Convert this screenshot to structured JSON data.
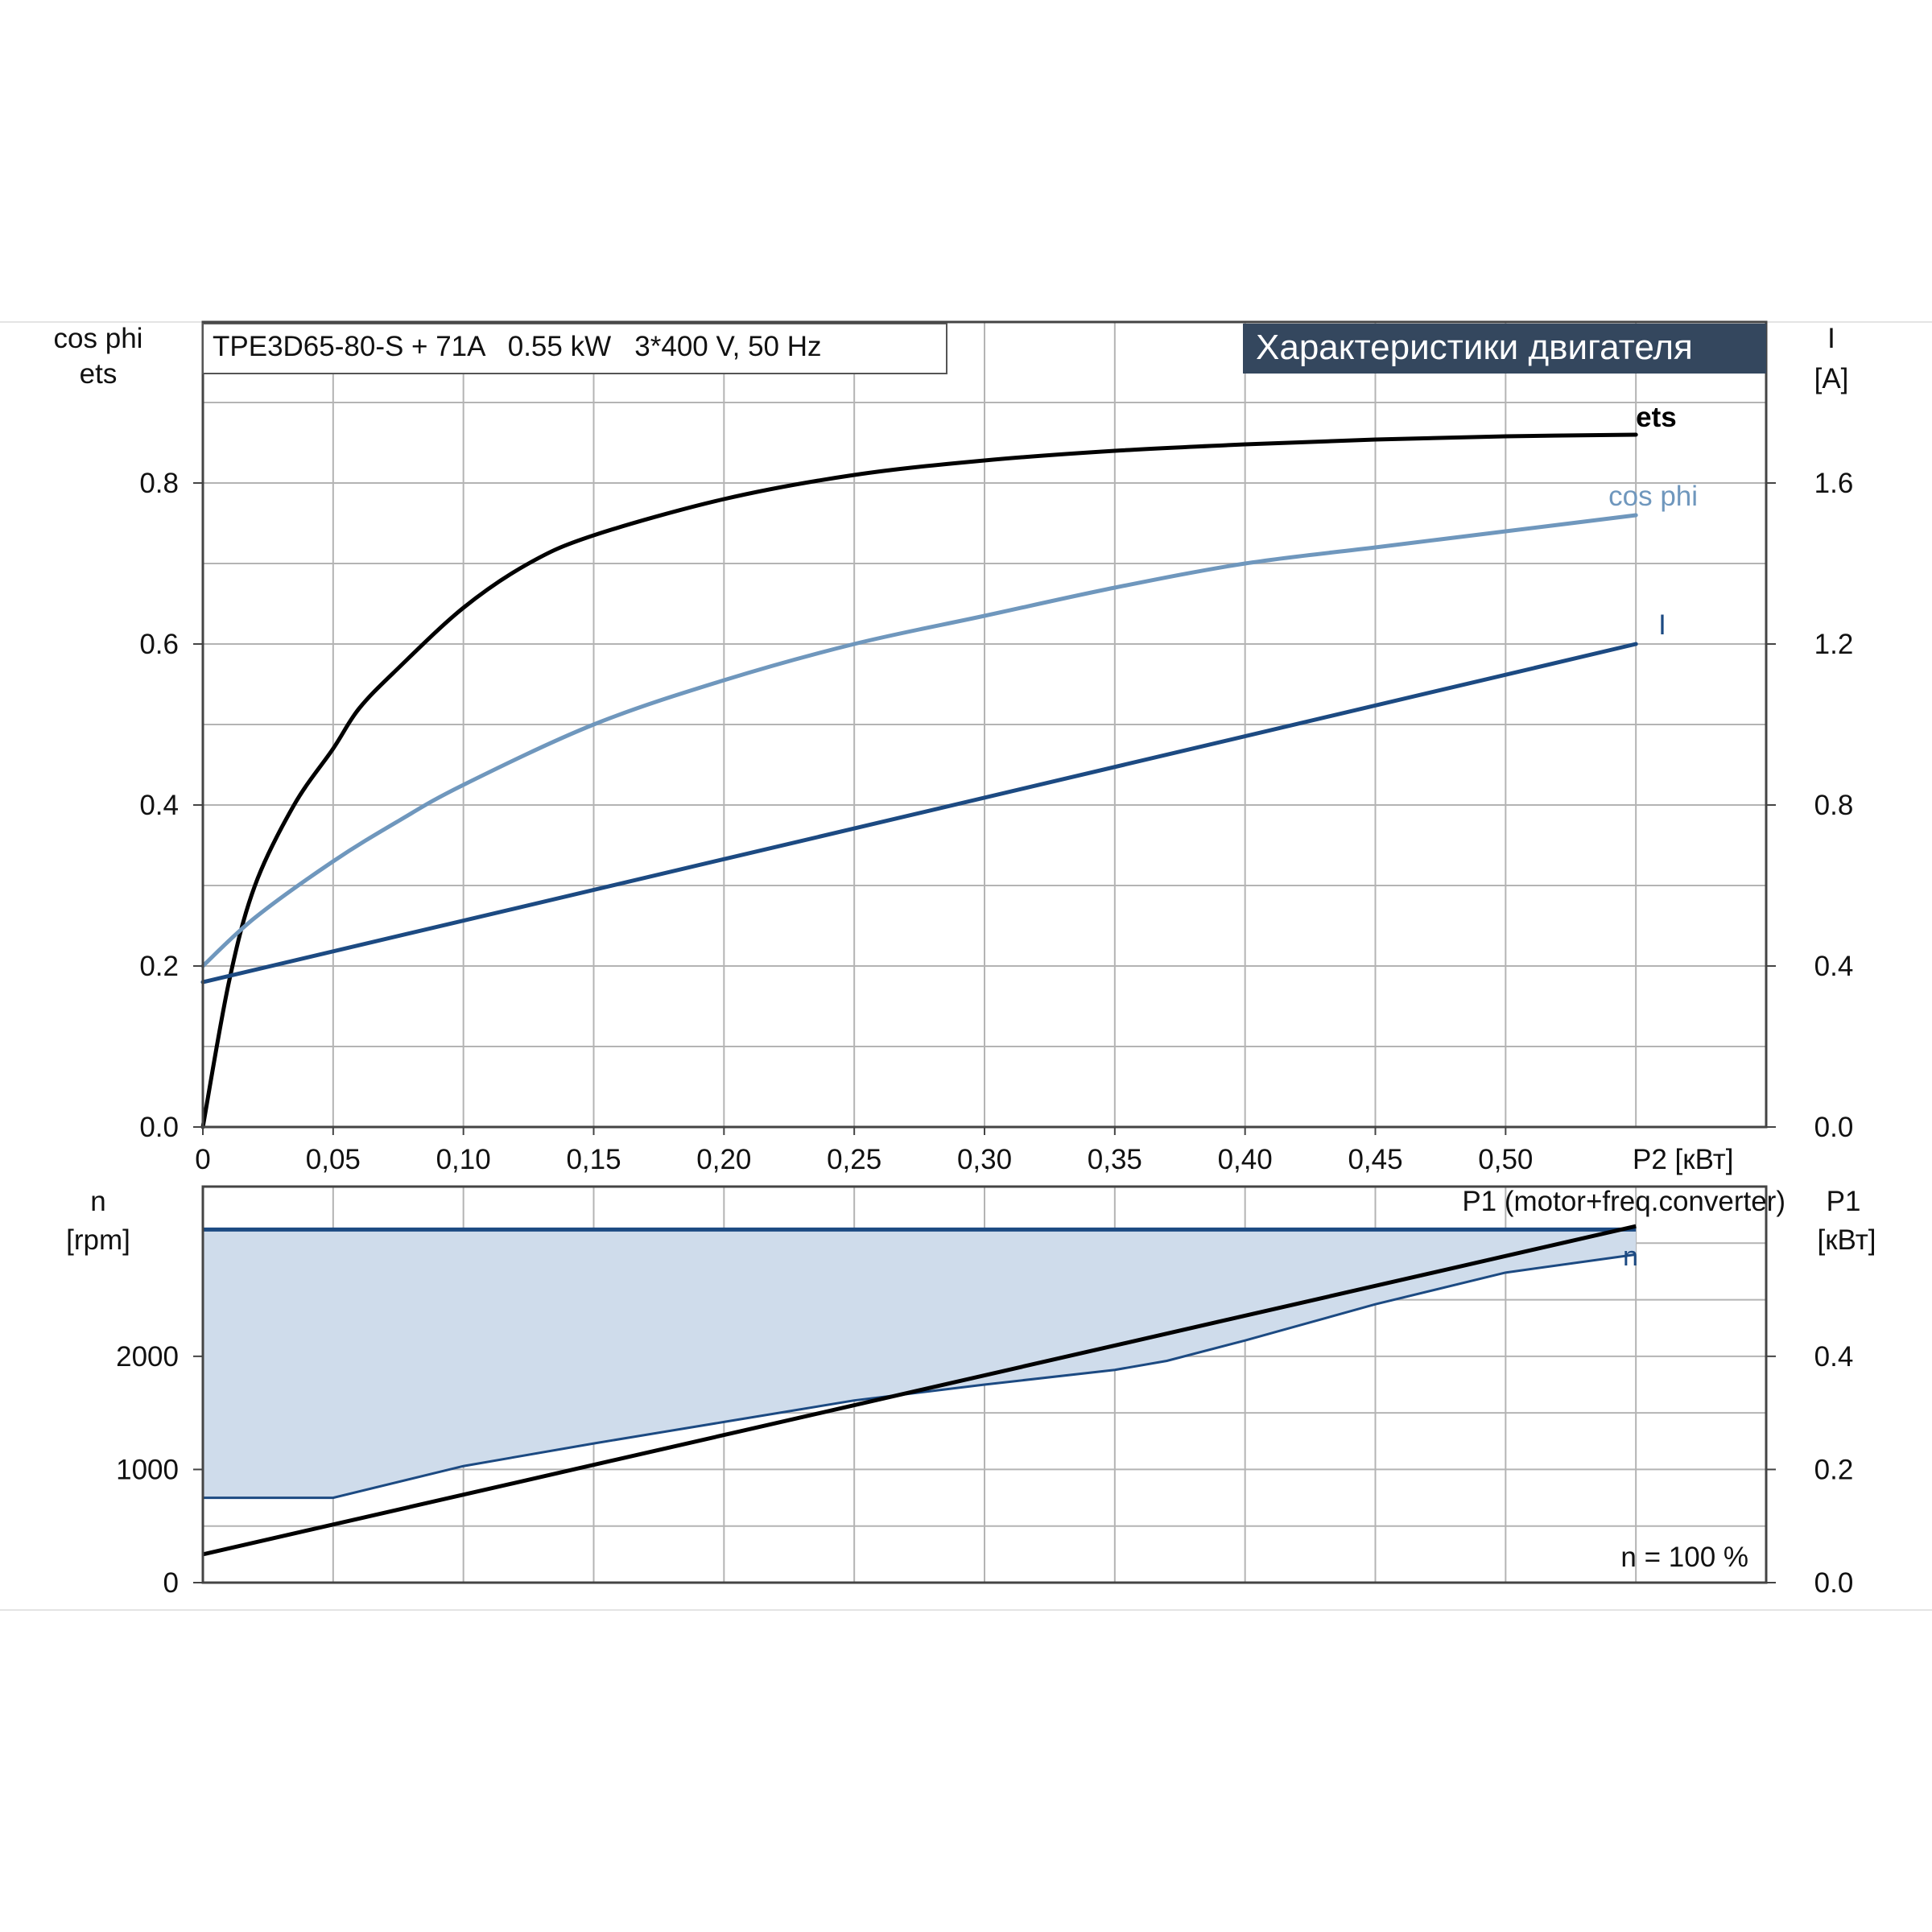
{
  "page": {
    "header_box_text": "TPE3D65-80-S + 71A   0.55 kW   3*400 V, 50 Hz",
    "banner_title": "Характеристики двигателя",
    "colors": {
      "ets": "#000000",
      "cos_phi": "#6f97bd",
      "current": "#1c4a82",
      "speed": "#1c4a82",
      "p1": "#000000",
      "fill": "#cfdceb",
      "grid": "#b4b4b4",
      "banner_bg": "#34475e",
      "banner_text": "#ffffff"
    }
  },
  "chart_data": [
    {
      "type": "line",
      "name": "upper",
      "xlabel": "P2 [кВт]",
      "x_ticks": [
        "0",
        "0,05",
        "0,10",
        "0,15",
        "0,20",
        "0,25",
        "0,30",
        "0,35",
        "0,40",
        "0,45",
        "0,50"
      ],
      "x_tick_values": [
        0,
        0.05,
        0.1,
        0.15,
        0.2,
        0.25,
        0.3,
        0.35,
        0.4,
        0.45,
        0.5
      ],
      "xlim": [
        0,
        0.6
      ],
      "y_left_label_1": "cos phi",
      "y_left_label_2": "ets",
      "y_left_ticks": [
        "0.0",
        "0.2",
        "0.4",
        "0.6",
        "0.8"
      ],
      "y_left_tick_values": [
        0,
        0.2,
        0.4,
        0.6,
        0.8
      ],
      "y_left_lim": [
        0,
        1.0
      ],
      "y_right_label_1": "I",
      "y_right_label_2": "[A]",
      "y_right_ticks": [
        "0.0",
        "0.4",
        "0.8",
        "1.2",
        "1.6"
      ],
      "y_right_tick_values": [
        0,
        0.4,
        0.8,
        1.2,
        1.6
      ],
      "y_right_lim": [
        0,
        2.0
      ],
      "grid": true,
      "series": [
        {
          "name": "ets",
          "axis": "left",
          "x": [
            0,
            0.01,
            0.02,
            0.035,
            0.05,
            0.06,
            0.075,
            0.1,
            0.125,
            0.15,
            0.2,
            0.25,
            0.3,
            0.35,
            0.4,
            0.45,
            0.5,
            0.55
          ],
          "y": [
            0,
            0.18,
            0.3,
            0.4,
            0.47,
            0.52,
            0.57,
            0.645,
            0.7,
            0.735,
            0.78,
            0.81,
            0.828,
            0.84,
            0.848,
            0.854,
            0.858,
            0.86
          ]
        },
        {
          "name": "cos phi",
          "axis": "left",
          "x": [
            0,
            0.02,
            0.05,
            0.075,
            0.1,
            0.15,
            0.2,
            0.25,
            0.3,
            0.35,
            0.4,
            0.45,
            0.5,
            0.55
          ],
          "y": [
            0.2,
            0.26,
            0.33,
            0.38,
            0.425,
            0.5,
            0.555,
            0.6,
            0.635,
            0.67,
            0.7,
            0.72,
            0.74,
            0.76
          ]
        },
        {
          "name": "I",
          "axis": "right",
          "x": [
            0,
            0.55
          ],
          "y": [
            0.36,
            1.2
          ]
        }
      ]
    },
    {
      "type": "area",
      "name": "lower",
      "y_left_label_1": "n",
      "y_left_label_2": "[rpm]",
      "y_left_ticks": [
        "0",
        "1000",
        "2000"
      ],
      "y_left_tick_values": [
        0,
        1000,
        2000
      ],
      "y_left_lim": [
        0,
        3500
      ],
      "y_right_label_1": "P1",
      "y_right_label_2": "[кВт]",
      "y_right_ticks": [
        "0.0",
        "0.2",
        "0.4"
      ],
      "y_right_tick_values": [
        0,
        0.2,
        0.4
      ],
      "y_right_lim": [
        0,
        0.7
      ],
      "xlim": [
        0,
        0.6
      ],
      "annotation": "n = 100 %",
      "p1_label": "P1 (motor+freq.converter)",
      "n_label": "n",
      "grid": true,
      "series": [
        {
          "name": "n max",
          "axis": "left",
          "x": [
            0,
            0.55
          ],
          "y": [
            3120,
            3120
          ]
        },
        {
          "name": "n min",
          "axis": "left",
          "x": [
            0,
            0.05,
            0.1,
            0.15,
            0.2,
            0.25,
            0.3,
            0.35,
            0.37,
            0.4,
            0.45,
            0.5,
            0.55
          ],
          "y": [
            750,
            750,
            1030,
            1230,
            1420,
            1610,
            1750,
            1880,
            1960,
            2140,
            2460,
            2740,
            2900
          ]
        },
        {
          "name": "P1 (motor+freq.converter)",
          "axis": "right",
          "x": [
            0,
            0.55
          ],
          "y": [
            0.05,
            0.63
          ]
        }
      ]
    }
  ]
}
